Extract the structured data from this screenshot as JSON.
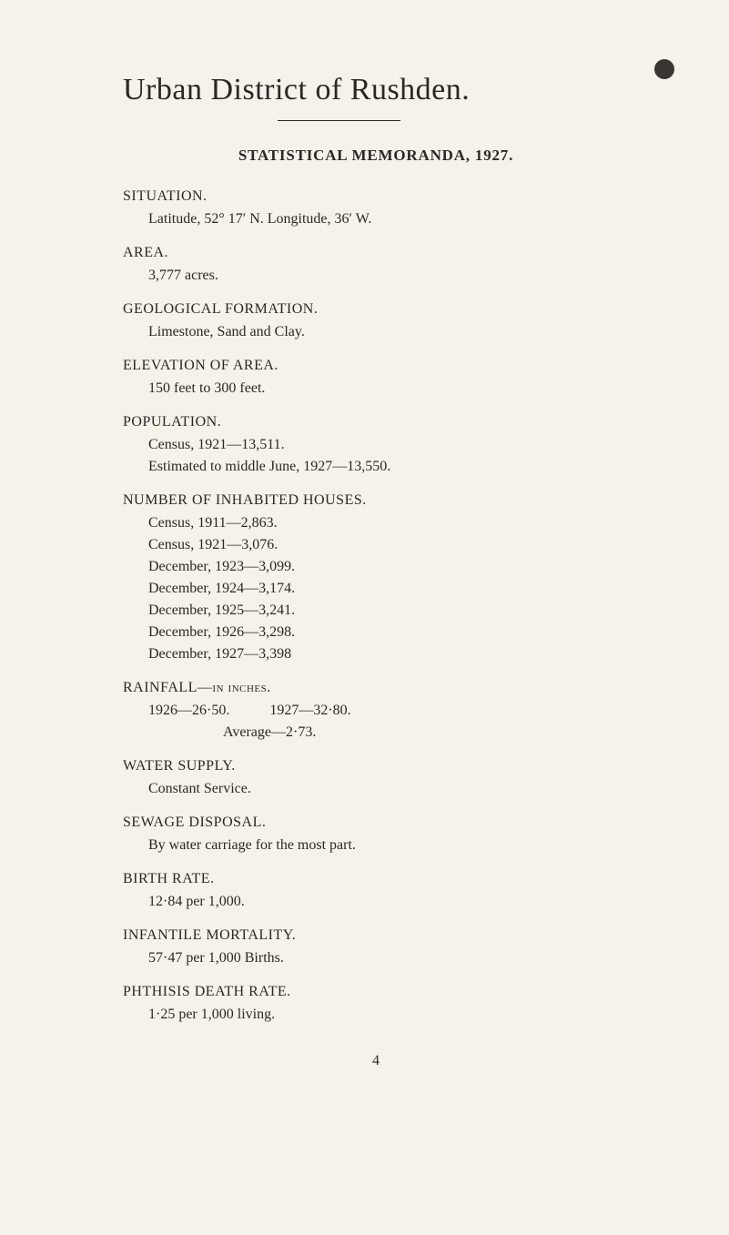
{
  "page": {
    "title": "Urban District of Rushden.",
    "subtitle": "STATISTICAL MEMORANDA, 1927.",
    "page_number": "4",
    "background_color": "#f5f2ea",
    "text_color": "#2a2825",
    "marker_color": "#3a3530"
  },
  "situation": {
    "heading": "SITUATION.",
    "value": "Latitude, 52° 17′ N.   Longitude, 36′ W."
  },
  "area": {
    "heading": "AREA.",
    "value": "3,777 acres."
  },
  "geological": {
    "heading": "GEOLOGICAL FORMATION.",
    "value": "Limestone, Sand and Clay."
  },
  "elevation": {
    "heading": "ELEVATION OF AREA.",
    "value": "150 feet to 300 feet."
  },
  "population": {
    "heading": "POPULATION.",
    "line1": "Census, 1921—13,511.",
    "line2": "Estimated to middle June, 1927—13,550."
  },
  "houses": {
    "heading": "NUMBER OF INHABITED HOUSES.",
    "lines": [
      "Census, 1911—2,863.",
      "Census, 1921—3,076.",
      "December, 1923—3,099.",
      "December, 1924—3,174.",
      "December, 1925—3,241.",
      "December, 1926—3,298.",
      "December, 1927—3,398"
    ]
  },
  "rainfall": {
    "heading_prefix": "RAINFALL—",
    "heading_suffix": "in inches.",
    "year1": "1926—26·50.",
    "year2": "1927—32·80.",
    "average": "Average—2·73."
  },
  "water": {
    "heading": "WATER SUPPLY.",
    "value": "Constant Service."
  },
  "sewage": {
    "heading": "SEWAGE DISPOSAL.",
    "value": "By water carriage for the most part."
  },
  "birth": {
    "heading": "BIRTH RATE.",
    "value": "12·84 per 1,000."
  },
  "infantile": {
    "heading": "INFANTILE MORTALITY.",
    "value": "57·47 per 1,000 Births."
  },
  "phthisis": {
    "heading": "PHTHISIS DEATH RATE.",
    "value": "1·25 per 1,000 living."
  }
}
